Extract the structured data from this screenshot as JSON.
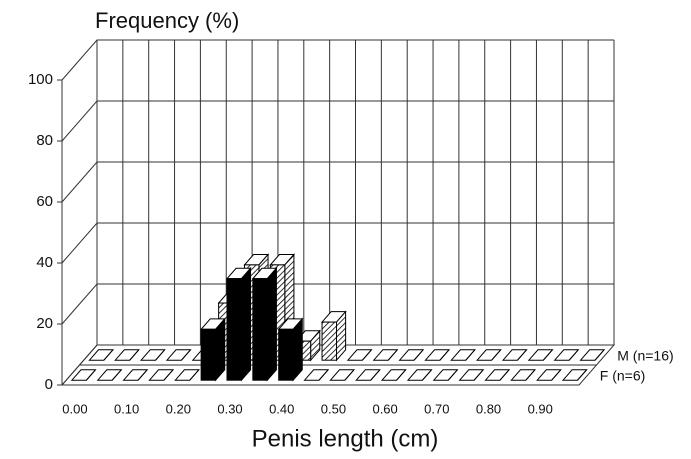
{
  "chart_data": {
    "type": "bar3d",
    "y_label": "Frequency (%)",
    "x_label": "Penis length (cm)",
    "categories": [
      "0.00",
      null,
      "0.10",
      null,
      "0.20",
      null,
      "0.30",
      null,
      "0.40",
      null,
      "0.50",
      null,
      "0.60",
      null,
      "0.70",
      null,
      "0.80",
      null,
      "0.90",
      null
    ],
    "series": [
      {
        "name": "F (n=6)",
        "color": "#000000",
        "hatch": false,
        "values": [
          0,
          0,
          0,
          0,
          0,
          16.7,
          33.3,
          33.3,
          16.7,
          0,
          0,
          0,
          0,
          0,
          0,
          0,
          0,
          0,
          0,
          0
        ]
      },
      {
        "name": "M (n=16)",
        "color": "#000000",
        "hatch": true,
        "values": [
          0,
          0,
          0,
          0,
          0,
          18.75,
          31.25,
          31.25,
          6.25,
          12.5,
          0,
          0,
          0,
          0,
          0,
          0,
          0,
          0,
          0,
          0
        ]
      }
    ],
    "ylim": [
      0,
      100
    ],
    "yticks": [
      0,
      20,
      40,
      60,
      80,
      100
    ],
    "grid": true
  }
}
